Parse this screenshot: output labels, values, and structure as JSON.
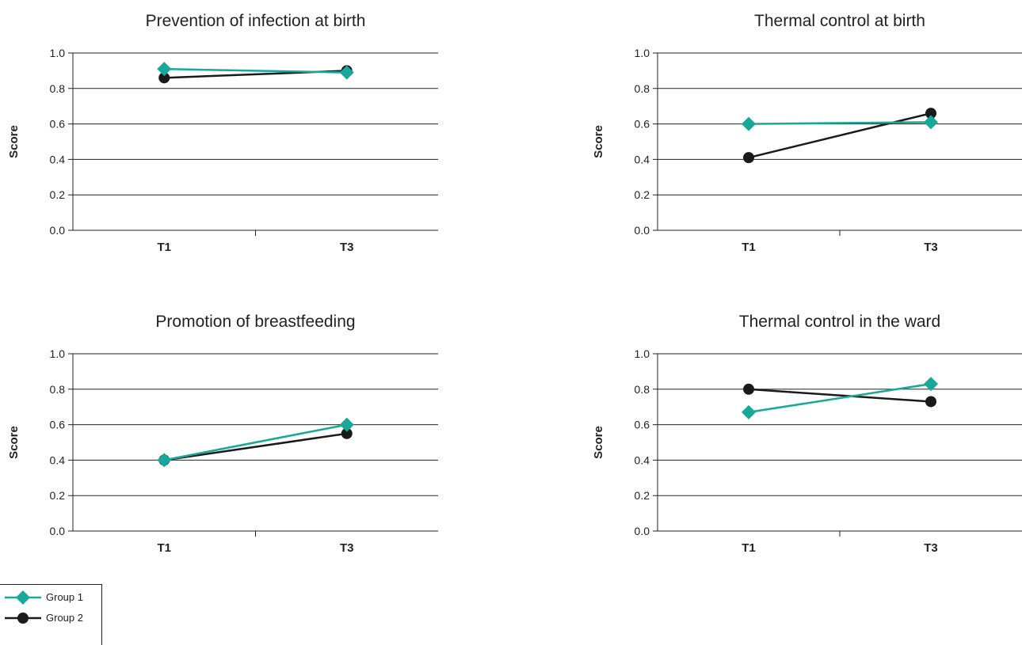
{
  "colors": {
    "group1": "#17a89a",
    "group2": "#1a1a1a",
    "grid": "#222222",
    "text": "#222222"
  },
  "legend": {
    "items": [
      {
        "label": "Group 1",
        "marker": "diamond"
      },
      {
        "label": "Group 2",
        "marker": "circle"
      }
    ]
  },
  "chart_data": [
    {
      "type": "line",
      "title": "Prevention of infection at birth",
      "ylabel": "Score",
      "categories": [
        "T1",
        "T3"
      ],
      "ylim": [
        0,
        1.0
      ],
      "yticks": [
        "0.0",
        "0.2",
        "0.4",
        "0.6",
        "0.8",
        "1.0"
      ],
      "series": [
        {
          "name": "Group 1",
          "values": [
            0.91,
            0.89
          ]
        },
        {
          "name": "Group 2",
          "values": [
            0.86,
            0.9
          ]
        }
      ]
    },
    {
      "type": "line",
      "title": "Thermal control at birth",
      "ylabel": "Score",
      "categories": [
        "T1",
        "T3"
      ],
      "ylim": [
        0,
        1.0
      ],
      "yticks": [
        "0.0",
        "0.2",
        "0.4",
        "0.6",
        "0.8",
        "1.0"
      ],
      "series": [
        {
          "name": "Group 1",
          "values": [
            0.6,
            0.61
          ]
        },
        {
          "name": "Group 2",
          "values": [
            0.41,
            0.66
          ]
        }
      ]
    },
    {
      "type": "line",
      "title": "Promotion of breastfeeding",
      "ylabel": "Score",
      "categories": [
        "T1",
        "T3"
      ],
      "ylim": [
        0,
        1.0
      ],
      "yticks": [
        "0.0",
        "0.2",
        "0.4",
        "0.6",
        "0.8",
        "1.0"
      ],
      "series": [
        {
          "name": "Group 1",
          "values": [
            0.4,
            0.6
          ]
        },
        {
          "name": "Group 2",
          "values": [
            0.4,
            0.55
          ]
        }
      ]
    },
    {
      "type": "line",
      "title": "Thermal control in the ward",
      "ylabel": "Score",
      "categories": [
        "T1",
        "T3"
      ],
      "ylim": [
        0,
        1.0
      ],
      "yticks": [
        "0.0",
        "0.2",
        "0.4",
        "0.6",
        "0.8",
        "1.0"
      ],
      "series": [
        {
          "name": "Group 1",
          "values": [
            0.67,
            0.83
          ]
        },
        {
          "name": "Group 2",
          "values": [
            0.8,
            0.73
          ]
        }
      ]
    }
  ]
}
